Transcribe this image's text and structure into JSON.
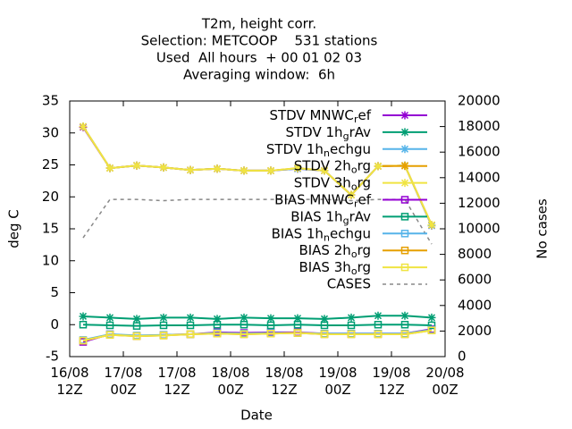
{
  "chart_data": {
    "type": "line",
    "title": [
      "T2m, height corr.",
      "Selection: METCOOP    531 stations",
      "Used  All hours  + 00 01 02 03",
      "Averaging window:  6h"
    ],
    "xlabel": "Date",
    "ylabel": "deg C",
    "y2label": "No cases",
    "x": [
      3,
      9,
      15,
      21,
      27,
      33,
      39,
      45,
      51,
      57,
      63,
      69,
      75,
      81
    ],
    "xlim": [
      0,
      84
    ],
    "xticks": [
      {
        "value": 0,
        "label": "16/08\n12Z"
      },
      {
        "value": 12,
        "label": "17/08\n00Z"
      },
      {
        "value": 24,
        "label": "17/08\n12Z"
      },
      {
        "value": 36,
        "label": "18/08\n00Z"
      },
      {
        "value": 48,
        "label": "18/08\n12Z"
      },
      {
        "value": 60,
        "label": "19/08\n00Z"
      },
      {
        "value": 72,
        "label": "19/08\n12Z"
      },
      {
        "value": 84,
        "label": "20/08\n00Z"
      }
    ],
    "ylim": [
      -5,
      35
    ],
    "yticks": [
      -5,
      0,
      5,
      10,
      15,
      20,
      25,
      30,
      35
    ],
    "y2lim": [
      0,
      20000
    ],
    "y2ticks": [
      0,
      2000,
      4000,
      6000,
      8000,
      10000,
      12000,
      14000,
      16000,
      18000,
      20000
    ],
    "legend": "top-right",
    "series": [
      {
        "name": "STDV MNWC_ref",
        "color": "#9400d3",
        "marker": "star",
        "values": [
          30.9,
          24.5,
          24.9,
          24.6,
          24.2,
          24.4,
          24.1,
          24.1,
          24.4,
          24.1,
          20.3,
          24.8,
          24.9,
          15.5
        ]
      },
      {
        "name": "STDV 1h_grAv",
        "color": "#009e73",
        "marker": "star",
        "values": [
          1.3,
          1.1,
          0.9,
          1.1,
          1.1,
          0.9,
          1.1,
          1.0,
          1.0,
          0.9,
          1.1,
          1.4,
          1.4,
          1.1
        ]
      },
      {
        "name": "STDV 1h_nechgu",
        "color": "#56b4e9",
        "marker": "star",
        "values": [
          31.0,
          24.5,
          24.9,
          24.6,
          24.2,
          24.4,
          24.1,
          24.1,
          24.4,
          24.1,
          20.3,
          24.8,
          24.9,
          15.5
        ]
      },
      {
        "name": "STDV 2h_org",
        "color": "#e69f00",
        "marker": "star",
        "values": [
          31.0,
          24.5,
          24.9,
          24.6,
          24.2,
          24.4,
          24.1,
          24.1,
          24.5,
          24.1,
          20.3,
          24.8,
          24.9,
          15.6
        ]
      },
      {
        "name": "STDV 3h_org",
        "color": "#f0e442",
        "marker": "star",
        "values": [
          31.0,
          24.5,
          24.9,
          24.6,
          24.2,
          24.4,
          24.1,
          24.1,
          24.5,
          24.1,
          20.3,
          24.8,
          24.9,
          15.6
        ]
      },
      {
        "name": "BIAS MNWC_ref",
        "color": "#9400d3",
        "marker": "square",
        "values": [
          -2.7,
          -1.5,
          -1.8,
          -1.6,
          -1.5,
          -1.2,
          -1.3,
          -1.2,
          -1.2,
          -1.4,
          -1.4,
          -1.4,
          -1.4,
          -0.7
        ]
      },
      {
        "name": "BIAS 1h_grAv",
        "color": "#009e73",
        "marker": "square",
        "values": [
          0.0,
          -0.1,
          -0.2,
          -0.1,
          -0.1,
          0.0,
          0.0,
          -0.1,
          0.0,
          -0.1,
          -0.1,
          0.0,
          0.0,
          -0.1
        ]
      },
      {
        "name": "BIAS 1h_nechgu",
        "color": "#56b4e9",
        "marker": "square",
        "values": [
          -2.4,
          -1.5,
          -1.7,
          -1.6,
          -1.5,
          -1.3,
          -1.4,
          -1.3,
          -1.3,
          -1.4,
          -1.4,
          -1.4,
          -1.4,
          -0.8
        ]
      },
      {
        "name": "BIAS 2h_org",
        "color": "#e69f00",
        "marker": "square",
        "values": [
          -2.5,
          -1.6,
          -1.8,
          -1.7,
          -1.5,
          -1.4,
          -1.5,
          -1.4,
          -1.3,
          -1.5,
          -1.5,
          -1.5,
          -1.5,
          -0.9
        ]
      },
      {
        "name": "BIAS 3h_org",
        "color": "#f0e442",
        "marker": "square",
        "values": [
          -2.5,
          -1.6,
          -1.8,
          -1.7,
          -1.5,
          -1.4,
          -1.5,
          -1.4,
          -1.3,
          -1.5,
          -1.5,
          -1.5,
          -1.5,
          -0.9
        ]
      },
      {
        "name": "CASES",
        "color": "#888888",
        "dash": true,
        "axis": "y2",
        "values": [
          9300,
          12300,
          12300,
          12200,
          12300,
          12300,
          12300,
          12300,
          12300,
          12300,
          12200,
          12300,
          12300,
          8800
        ]
      }
    ]
  }
}
